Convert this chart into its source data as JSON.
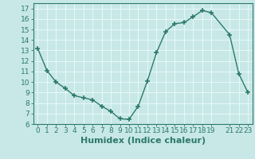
{
  "x": [
    0,
    1,
    2,
    3,
    4,
    5,
    6,
    7,
    8,
    9,
    10,
    11,
    12,
    13,
    14,
    15,
    16,
    17,
    18,
    19,
    21,
    22,
    23
  ],
  "y": [
    13.2,
    11.1,
    10.0,
    9.4,
    8.7,
    8.5,
    8.3,
    7.7,
    7.2,
    6.5,
    6.45,
    7.7,
    10.1,
    12.8,
    14.8,
    15.55,
    15.65,
    16.2,
    16.8,
    16.6,
    14.5,
    10.8,
    9.0
  ],
  "line_color": "#2d7a6a",
  "marker": "+",
  "markersize": 4,
  "markeredgewidth": 1.2,
  "linewidth": 1.0,
  "xlabel": "Humidex (Indice chaleur)",
  "xlabel_fontsize": 8,
  "xlim": [
    -0.5,
    23.5
  ],
  "ylim": [
    6,
    17.5
  ],
  "yticks": [
    6,
    7,
    8,
    9,
    10,
    11,
    12,
    13,
    14,
    15,
    16,
    17
  ],
  "xticks": [
    0,
    1,
    2,
    3,
    4,
    5,
    6,
    7,
    8,
    9,
    10,
    11,
    12,
    13,
    14,
    15,
    16,
    17,
    18,
    19,
    21,
    22,
    23
  ],
  "bg_color": "#c8e8e8",
  "grid_color": "#e8f8f8",
  "tick_color": "#2d7a6a",
  "tick_fontsize": 6.5,
  "spine_color": "#2d7a6a"
}
